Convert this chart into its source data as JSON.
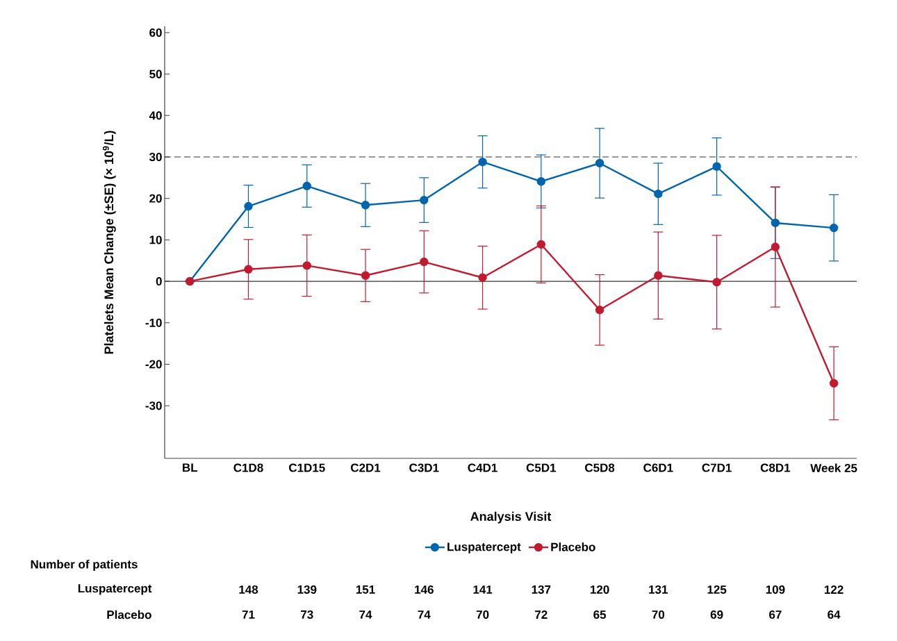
{
  "chart_data": {
    "type": "line",
    "xlabel": "Analysis Visit",
    "ylabel": "Platelets Mean Change (±SE) (× 10$^{9}$/L)",
    "categories": [
      "BL",
      "C1D8",
      "C1D15",
      "C2D1",
      "C3D1",
      "C4D1",
      "C5D1",
      "C5D8",
      "C6D1",
      "C7D1",
      "C8D1",
      "Week 25"
    ],
    "series": [
      {
        "name": "Luspatercept",
        "color": "#0065ad",
        "values": [
          0,
          18.1,
          23.0,
          18.4,
          19.6,
          28.8,
          24.1,
          28.5,
          21.1,
          27.7,
          14.1,
          12.9
        ],
        "errors": [
          null,
          5.1,
          5.1,
          5.2,
          5.4,
          6.3,
          6.4,
          8.4,
          7.4,
          6.9,
          8.6,
          8.0
        ]
      },
      {
        "name": "Placebo",
        "color": "#c11b30",
        "values": [
          0,
          2.9,
          3.8,
          1.4,
          4.7,
          0.9,
          8.9,
          -6.9,
          1.4,
          -0.2,
          8.3,
          -24.6
        ],
        "errors": [
          null,
          7.2,
          7.4,
          6.3,
          7.5,
          7.6,
          9.3,
          8.5,
          10.5,
          11.3,
          14.5,
          8.8
        ]
      }
    ],
    "ylim": [
      -42.7,
      61.5
    ],
    "yticks": [
      -30,
      -20,
      -10,
      0,
      10,
      20,
      30,
      40,
      50,
      60
    ],
    "ref_lines": [
      {
        "axis": "y",
        "value": 30,
        "color": "#333333",
        "line_style": "dashed"
      },
      {
        "axis": "y",
        "value": 0,
        "color": "#333333",
        "line_style": "solid"
      }
    ],
    "marker": "circle",
    "line_style": "solid",
    "legend": "bottom",
    "grid": false,
    "annotations": [
      "Number of patients",
      "Luspatercept",
      "148",
      "139",
      "151",
      "146",
      "141",
      "137",
      "120",
      "131",
      "125",
      "109",
      "122",
      "Placebo",
      "71",
      "73",
      "74",
      "74",
      "70",
      "72",
      "65",
      "70",
      "69",
      "67",
      "64"
    ]
  }
}
